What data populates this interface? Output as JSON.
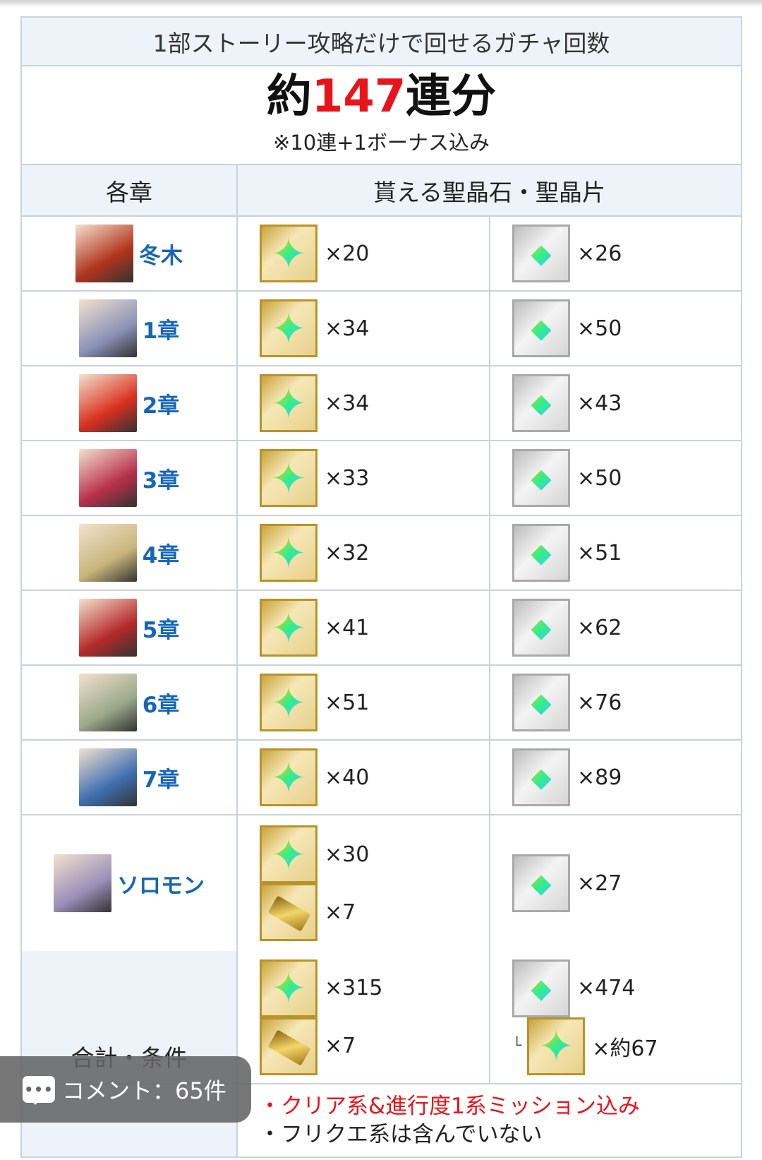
{
  "table": {
    "title": "1部ストーリー攻略だけで回せるガチャ回数",
    "summary": {
      "prefix": "約",
      "count": "147",
      "suffix": "連分",
      "note": "※10連+1ボーナス込み"
    },
    "headers": {
      "chapter": "各章",
      "rewards": "貰える聖晶石・聖晶片"
    },
    "rows": [
      {
        "chapter": "冬木",
        "quartz": "×20",
        "fragments": "×26",
        "portrait_color": "#b0341c"
      },
      {
        "chapter": "1章",
        "quartz": "×34",
        "fragments": "×50",
        "portrait_color": "#8b93b8"
      },
      {
        "chapter": "2章",
        "quartz": "×34",
        "fragments": "×43",
        "portrait_color": "#d8301e"
      },
      {
        "chapter": "3章",
        "quartz": "×33",
        "fragments": "×50",
        "portrait_color": "#b8304a"
      },
      {
        "chapter": "4章",
        "quartz": "×32",
        "fragments": "×51",
        "portrait_color": "#c9b57a"
      },
      {
        "chapter": "5章",
        "quartz": "×41",
        "fragments": "×62",
        "portrait_color": "#b42a2a"
      },
      {
        "chapter": "6章",
        "quartz": "×51",
        "fragments": "×76",
        "portrait_color": "#9aa98a"
      },
      {
        "chapter": "7章",
        "quartz": "×40",
        "fragments": "×89",
        "portrait_color": "#3f6fb0"
      },
      {
        "chapter": "ソロモン",
        "quartz": "×30",
        "tickets": "×7",
        "fragments": "×27",
        "portrait_color": "#9a8fb8"
      }
    ],
    "total": {
      "label": "合計・条件",
      "quartz": "×315",
      "tickets": "×7",
      "fragments": "×474",
      "fragment_branch": "└",
      "fragments_as_quartz": "×約67"
    },
    "notes": [
      {
        "text": "・クリア系&進行度1系ミッション込み",
        "color": "#e8141b"
      },
      {
        "text": "・フリクエ系は含んでいない",
        "color": "#222222"
      }
    ]
  },
  "comment_button": {
    "icon": "speech-bubble-icon",
    "dots": "•••",
    "label": "コメント：65件"
  },
  "colors": {
    "accent_red": "#e8141b",
    "link_blue": "#1566b8",
    "header_bg": "#eef3f9",
    "border": "#c8d3dc"
  }
}
